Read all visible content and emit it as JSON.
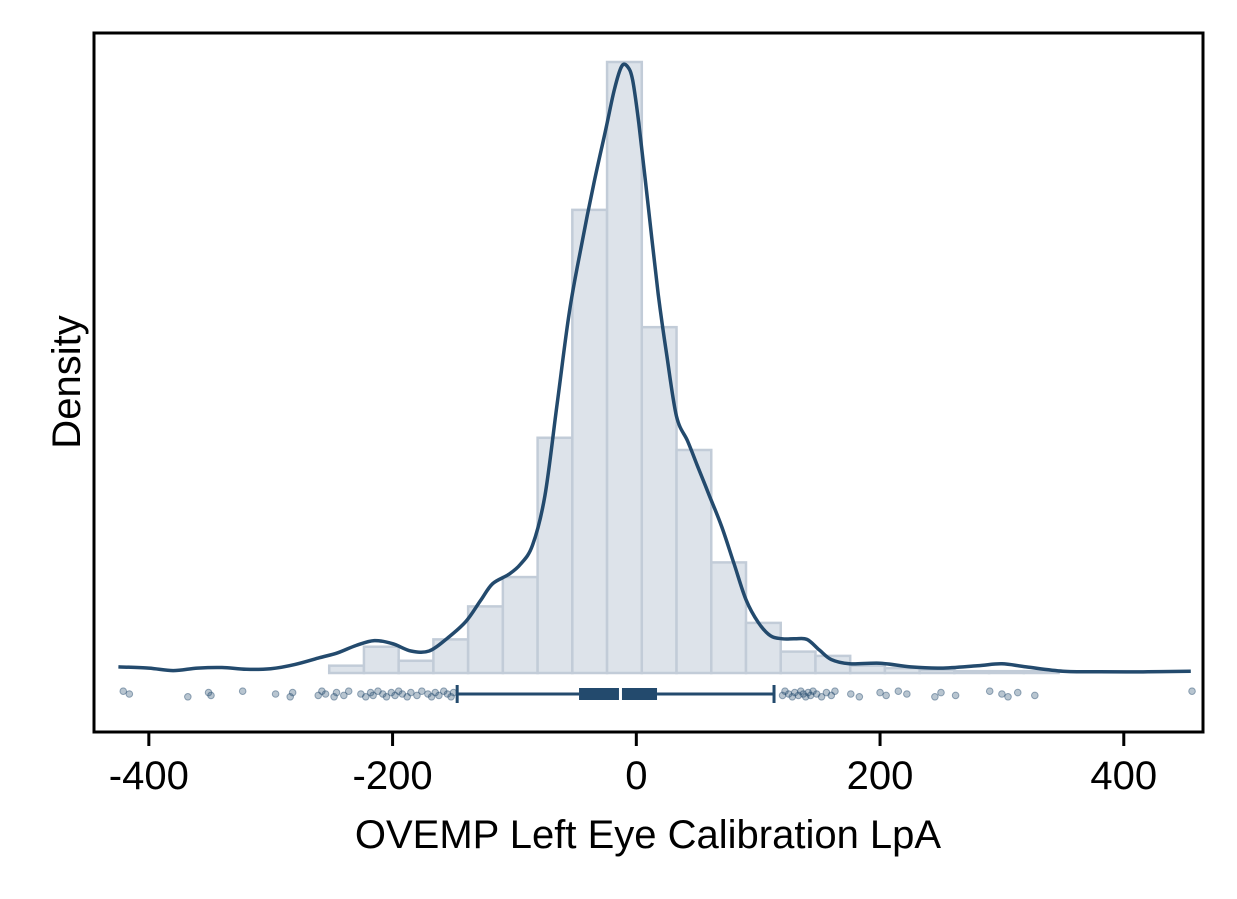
{
  "chart_data": {
    "type": "histogram",
    "xlabel": "OVEMP Left Eye Calibration LpA",
    "ylabel": "Density",
    "xlim": [
      -445,
      465
    ],
    "x_ticks": [
      {
        "value": -400,
        "label": "-400"
      },
      {
        "value": -200,
        "label": "-200"
      },
      {
        "value": 0,
        "label": "0"
      },
      {
        "value": 200,
        "label": "200"
      },
      {
        "value": 400,
        "label": "400"
      }
    ],
    "y_ticks_shown": false,
    "colors": {
      "bar_fill": "#dde3ea",
      "bar_stroke": "#c2ccd8",
      "line": "#234a6d",
      "point": "#234a6d"
    },
    "histogram": {
      "bin_width": 28.5,
      "bins": [
        {
          "x0": -252,
          "height": 0.012
        },
        {
          "x0": -223.5,
          "height": 0.043
        },
        {
          "x0": -195,
          "height": 0.02
        },
        {
          "x0": -166.5,
          "height": 0.055
        },
        {
          "x0": -138,
          "height": 0.109
        },
        {
          "x0": -109.5,
          "height": 0.157
        },
        {
          "x0": -81,
          "height": 0.385
        },
        {
          "x0": -52.5,
          "height": 0.758
        },
        {
          "x0": -24,
          "height": 1.0
        },
        {
          "x0": 4.5,
          "height": 0.566
        },
        {
          "x0": 33,
          "height": 0.365
        },
        {
          "x0": 61.5,
          "height": 0.181
        },
        {
          "x0": 90,
          "height": 0.082
        },
        {
          "x0": 118.5,
          "height": 0.035
        },
        {
          "x0": 147,
          "height": 0.028
        },
        {
          "x0": 175.5,
          "height": 0.012
        },
        {
          "x0": 204,
          "height": 0.008
        },
        {
          "x0": 232.5,
          "height": 0.005
        },
        {
          "x0": 261,
          "height": 0.003
        },
        {
          "x0": 289.5,
          "height": 0.003
        },
        {
          "x0": 318,
          "height": 0.003
        }
      ]
    },
    "density": [
      [
        -425,
        0.01
      ],
      [
        -400,
        0.008
      ],
      [
        -380,
        0.004
      ],
      [
        -360,
        0.008
      ],
      [
        -340,
        0.009
      ],
      [
        -320,
        0.006
      ],
      [
        -300,
        0.007
      ],
      [
        -280,
        0.014
      ],
      [
        -260,
        0.025
      ],
      [
        -245,
        0.033
      ],
      [
        -230,
        0.045
      ],
      [
        -215,
        0.053
      ],
      [
        -200,
        0.048
      ],
      [
        -185,
        0.036
      ],
      [
        -170,
        0.036
      ],
      [
        -155,
        0.057
      ],
      [
        -140,
        0.084
      ],
      [
        -128,
        0.118
      ],
      [
        -118,
        0.146
      ],
      [
        -105,
        0.161
      ],
      [
        -95,
        0.178
      ],
      [
        -85,
        0.21
      ],
      [
        -75,
        0.29
      ],
      [
        -65,
        0.44
      ],
      [
        -55,
        0.59
      ],
      [
        -45,
        0.7
      ],
      [
        -35,
        0.8
      ],
      [
        -25,
        0.89
      ],
      [
        -18,
        0.955
      ],
      [
        -12,
        0.993
      ],
      [
        -7,
        0.992
      ],
      [
        -3,
        0.97
      ],
      [
        2,
        0.9
      ],
      [
        10,
        0.76
      ],
      [
        18,
        0.62
      ],
      [
        25,
        0.52
      ],
      [
        33,
        0.42
      ],
      [
        42,
        0.38
      ],
      [
        50,
        0.34
      ],
      [
        60,
        0.29
      ],
      [
        70,
        0.24
      ],
      [
        80,
        0.18
      ],
      [
        90,
        0.12
      ],
      [
        100,
        0.083
      ],
      [
        110,
        0.061
      ],
      [
        120,
        0.056
      ],
      [
        130,
        0.056
      ],
      [
        140,
        0.055
      ],
      [
        150,
        0.038
      ],
      [
        160,
        0.022
      ],
      [
        175,
        0.015
      ],
      [
        200,
        0.016
      ],
      [
        225,
        0.01
      ],
      [
        250,
        0.008
      ],
      [
        280,
        0.012
      ],
      [
        300,
        0.015
      ],
      [
        320,
        0.01
      ],
      [
        350,
        0.003
      ],
      [
        380,
        0.002
      ],
      [
        420,
        0.002
      ],
      [
        455,
        0.003
      ]
    ],
    "boxplot": {
      "whisker_low": -147,
      "q1": -47,
      "median": -13,
      "q3": 17,
      "whisker_high": 113
    },
    "outliers": [
      -421,
      -416,
      -368,
      -351,
      -349,
      -323,
      -296,
      -284,
      -282,
      -261,
      -258,
      -255,
      -248,
      -246,
      -240,
      -236,
      -226,
      -222,
      -218,
      -216,
      -212,
      -208,
      -205,
      -201,
      -198,
      -195,
      -192,
      -188,
      -185,
      -180,
      -176,
      -171,
      -168,
      -165,
      -162,
      -158,
      -155,
      -152,
      -150,
      120,
      122,
      125,
      128,
      130,
      133,
      135,
      137,
      139,
      141,
      143,
      145,
      148,
      152,
      156,
      160,
      163,
      176,
      183,
      200,
      205,
      215,
      222,
      245,
      250,
      262,
      290,
      300,
      305,
      313,
      327,
      456
    ]
  }
}
